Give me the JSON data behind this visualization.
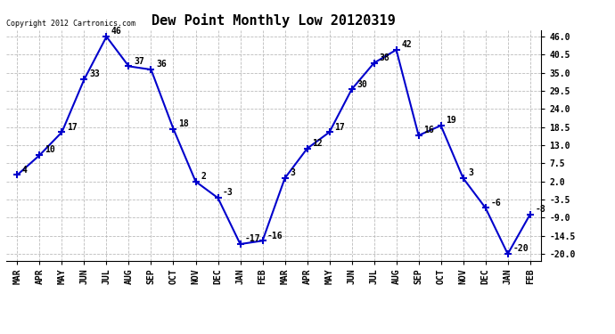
{
  "title": "Dew Point Monthly Low 20120319",
  "copyright": "Copyright 2012 Cartronics.com",
  "x_labels": [
    "MAR",
    "APR",
    "MAY",
    "JUN",
    "JUL",
    "AUG",
    "SEP",
    "OCT",
    "NOV",
    "DEC",
    "JAN",
    "FEB",
    "MAR",
    "APR",
    "MAY",
    "JUN",
    "JUL",
    "AUG",
    "SEP",
    "OCT",
    "NOV",
    "DEC",
    "JAN",
    "FEB"
  ],
  "values": [
    4,
    10,
    17,
    33,
    46,
    37,
    36,
    18,
    2,
    -3,
    -17,
    -16,
    3,
    12,
    17,
    30,
    38,
    42,
    16,
    19,
    3,
    -6,
    -20,
    -8
  ],
  "line_color": "#0000CC",
  "marker": "+",
  "marker_color": "#0000CC",
  "marker_size": 6,
  "ylim": [
    -22,
    48
  ],
  "yticks": [
    -20.0,
    -14.5,
    -9.0,
    -3.5,
    2.0,
    7.5,
    13.0,
    18.5,
    24.0,
    29.5,
    35.0,
    40.5,
    46.0
  ],
  "grid_color": "#bbbbbb",
  "bg_color": "#ffffff",
  "title_fontsize": 11,
  "label_fontsize": 7,
  "annotation_fontsize": 7,
  "line_width": 1.5
}
